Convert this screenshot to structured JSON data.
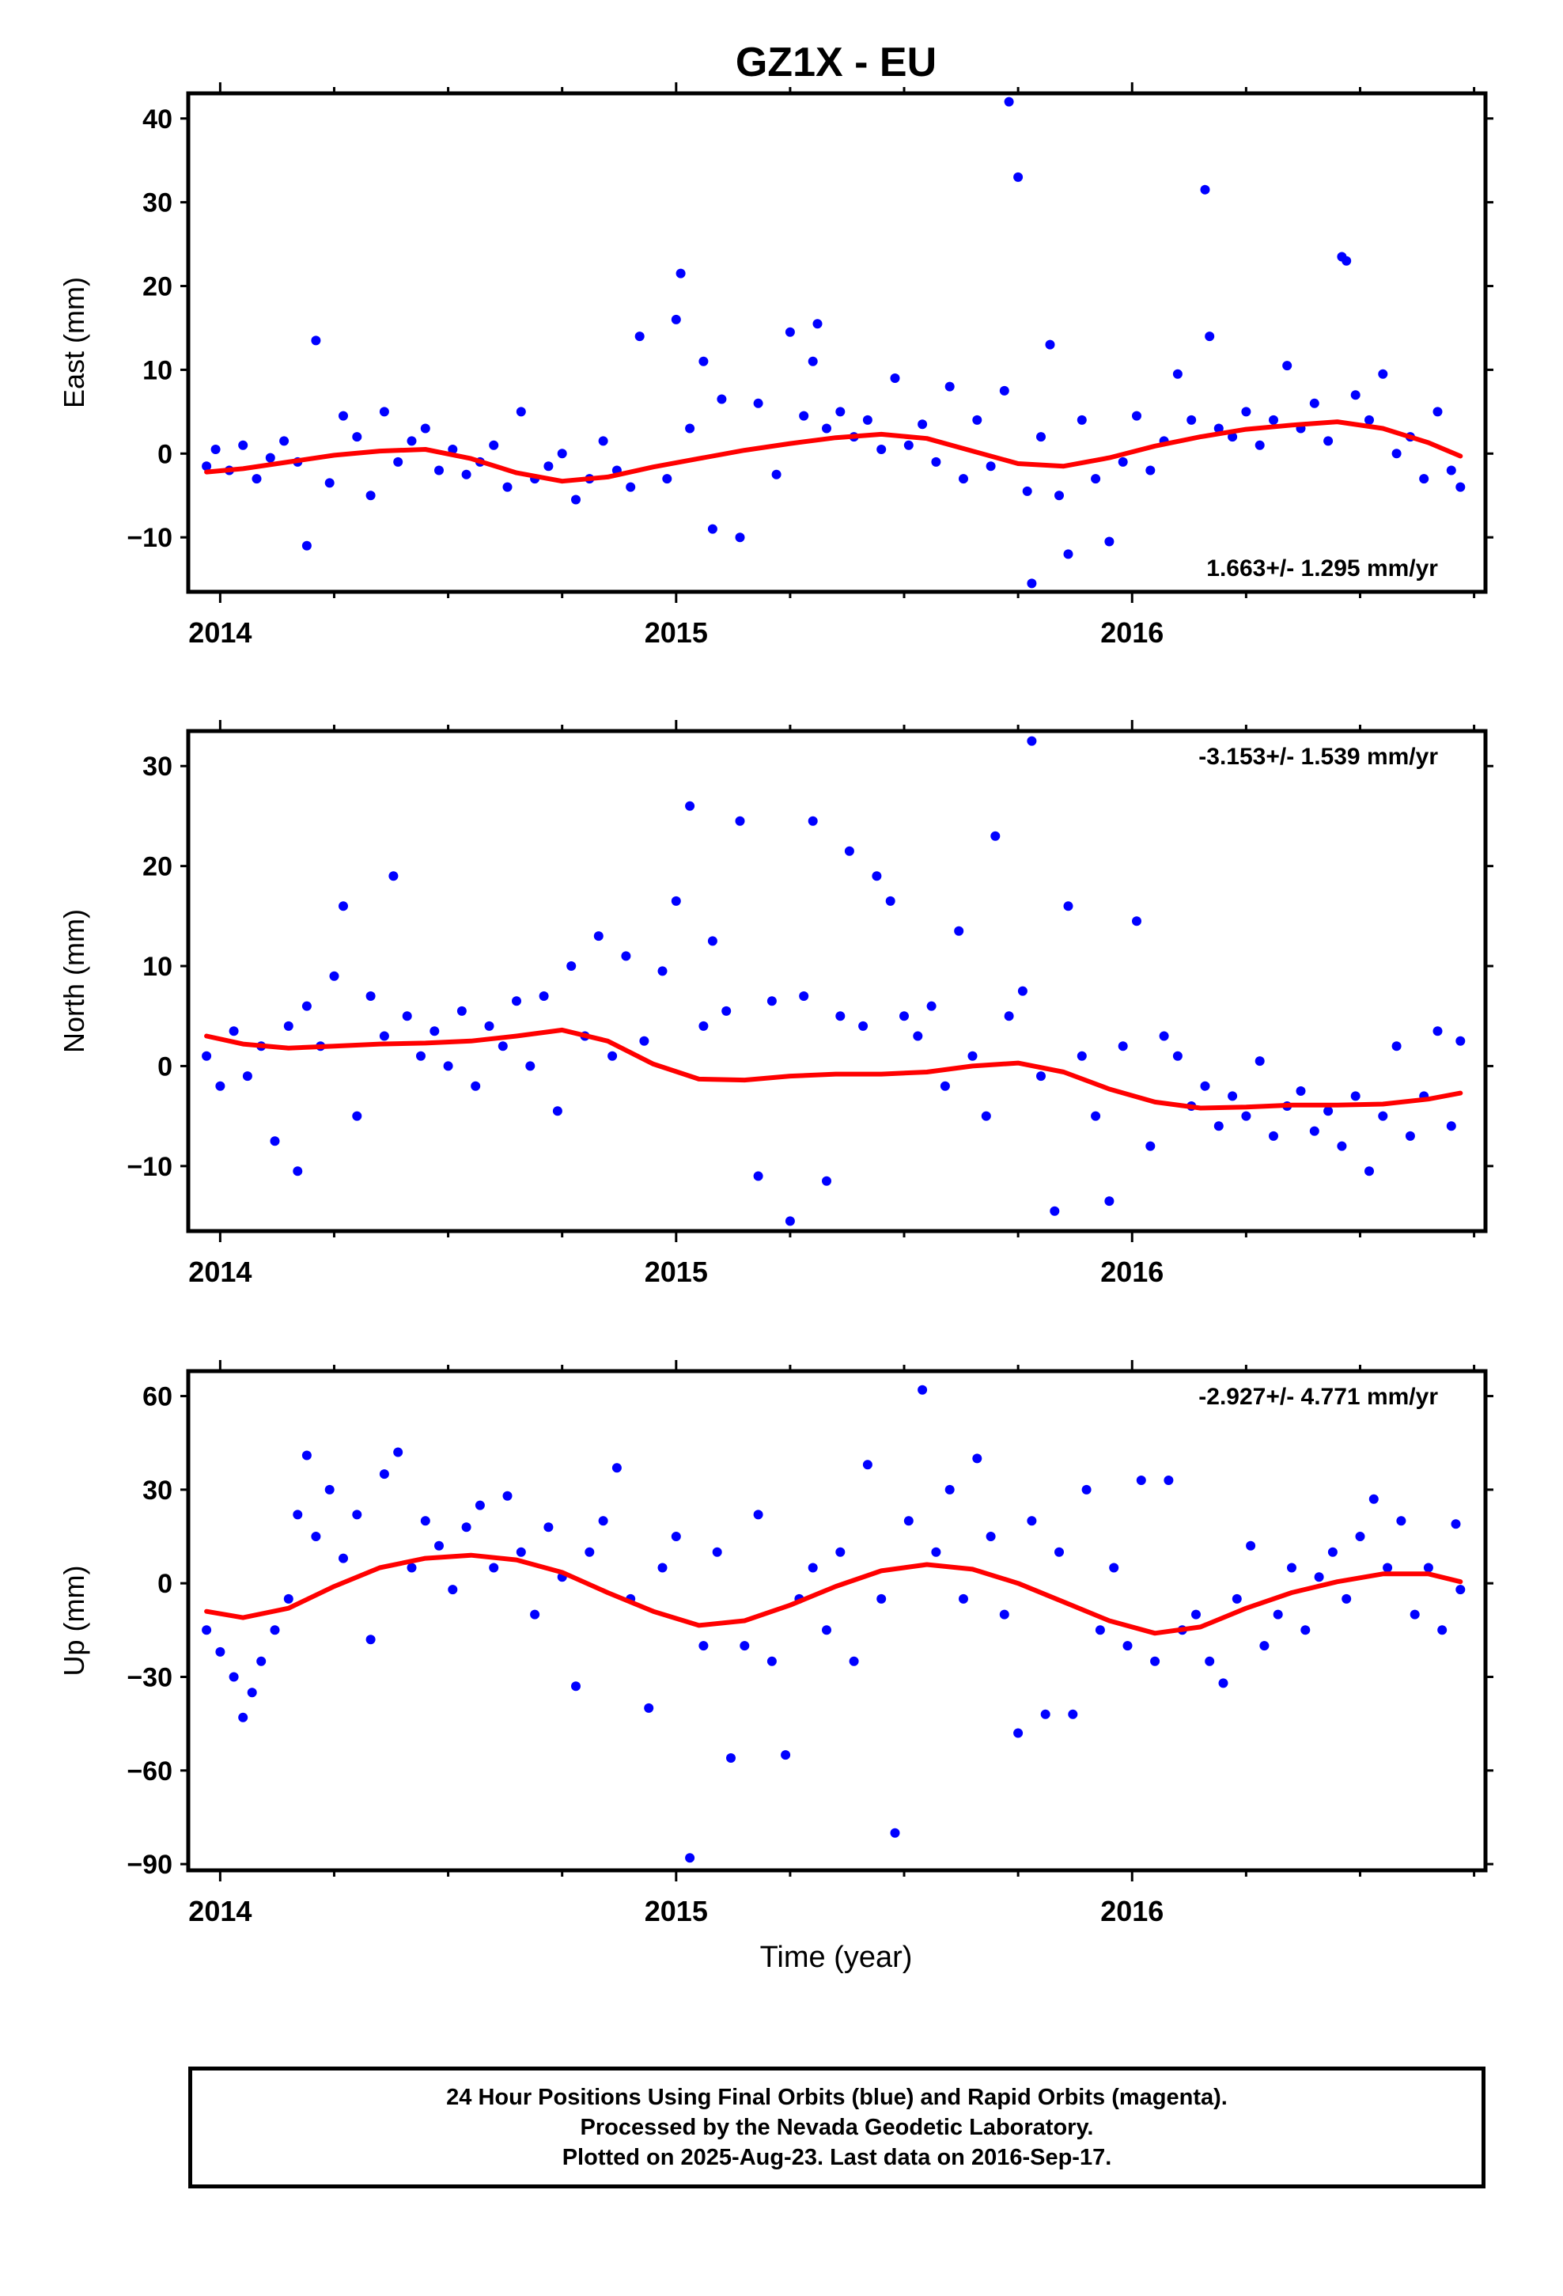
{
  "title": "GZ1X - EU",
  "xlabel": "Time (year)",
  "colors": {
    "final_orbits": "#0000ff",
    "fit_curve": "#ff0000",
    "frame": "#000000"
  },
  "footer": {
    "line1": "24 Hour Positions Using Final Orbits (blue) and Rapid Orbits (magenta).",
    "line2": "Processed by the Nevada Geodetic Laboratory.",
    "line3": "Plotted on 2025-Aug-23. Last data on 2016-Sep-17."
  },
  "chart_data": [
    {
      "type": "scatter",
      "ylabel": "East (mm)",
      "rate_label": "1.663+/- 1.295 mm/yr",
      "rate_position": "bottom-right",
      "xlim": [
        2013.93,
        2016.775
      ],
      "ylim": [
        -16.5,
        43
      ],
      "xticks": [
        2014,
        2015,
        2016
      ],
      "yticks": [
        -10,
        0,
        10,
        20,
        30,
        40
      ],
      "grid": false,
      "series": [
        {
          "kind": "points",
          "x": [
            2013.97,
            2013.99,
            2014.02,
            2014.05,
            2014.08,
            2014.11,
            2014.14,
            2014.17,
            2014.19,
            2014.21,
            2014.24,
            2014.27,
            2014.3,
            2014.33,
            2014.36,
            2014.39,
            2014.42,
            2014.45,
            2014.48,
            2014.51,
            2014.54,
            2014.57,
            2014.6,
            2014.63,
            2014.66,
            2014.69,
            2014.72,
            2014.75,
            2014.78,
            2014.81,
            2014.84,
            2014.87,
            2014.9,
            2014.92,
            2014.98,
            2015.0,
            2015.01,
            2015.03,
            2015.06,
            2015.08,
            2015.1,
            2015.14,
            2015.18,
            2015.22,
            2015.25,
            2015.28,
            2015.3,
            2015.31,
            2015.33,
            2015.36,
            2015.39,
            2015.42,
            2015.45,
            2015.48,
            2015.51,
            2015.54,
            2015.57,
            2015.6,
            2015.63,
            2015.66,
            2015.69,
            2015.72,
            2015.73,
            2015.75,
            2015.77,
            2015.78,
            2015.8,
            2015.82,
            2015.84,
            2015.86,
            2015.89,
            2015.92,
            2015.95,
            2015.98,
            2016.01,
            2016.04,
            2016.07,
            2016.1,
            2016.13,
            2016.16,
            2016.17,
            2016.19,
            2016.22,
            2016.25,
            2016.28,
            2016.31,
            2016.34,
            2016.37,
            2016.4,
            2016.43,
            2016.46,
            2016.47,
            2016.49,
            2016.52,
            2016.55,
            2016.58,
            2016.61,
            2016.64,
            2016.67,
            2016.7,
            2016.72
          ],
          "y": [
            -1.5,
            0.5,
            -2.0,
            1.0,
            -3.0,
            -0.5,
            1.5,
            -1.0,
            -11.0,
            13.5,
            -3.5,
            4.5,
            2.0,
            -5.0,
            5.0,
            -1.0,
            1.5,
            3.0,
            -2.0,
            0.5,
            -2.5,
            -1.0,
            1.0,
            -4.0,
            5.0,
            -3.0,
            -1.5,
            0.0,
            -5.5,
            -3.0,
            1.5,
            -2.0,
            -4.0,
            14.0,
            -3.0,
            16.0,
            21.5,
            3.0,
            11.0,
            -9.0,
            6.5,
            -10.0,
            6.0,
            -2.5,
            14.5,
            4.5,
            11.0,
            15.5,
            3.0,
            5.0,
            2.0,
            4.0,
            0.5,
            9.0,
            1.0,
            3.5,
            -1.0,
            8.0,
            -3.0,
            4.0,
            -1.5,
            7.5,
            42.0,
            33.0,
            -4.5,
            -15.5,
            2.0,
            13.0,
            -5.0,
            -12.0,
            4.0,
            -3.0,
            -10.5,
            -1.0,
            4.5,
            -2.0,
            1.5,
            9.5,
            4.0,
            31.5,
            14.0,
            3.0,
            2.0,
            5.0,
            1.0,
            4.0,
            10.5,
            3.0,
            6.0,
            1.5,
            23.5,
            23.0,
            7.0,
            4.0,
            9.5,
            0.0,
            2.0,
            -3.0,
            5.0,
            -2.0,
            -4.0
          ]
        },
        {
          "kind": "fit",
          "x": [
            2013.97,
            2014.05,
            2014.15,
            2014.25,
            2014.35,
            2014.45,
            2014.55,
            2014.65,
            2014.75,
            2014.85,
            2014.95,
            2015.05,
            2015.15,
            2015.25,
            2015.35,
            2015.45,
            2015.55,
            2015.65,
            2015.75,
            2015.85,
            2015.95,
            2016.05,
            2016.15,
            2016.25,
            2016.35,
            2016.45,
            2016.55,
            2016.65,
            2016.72
          ],
          "y": [
            -2.2,
            -1.8,
            -1.0,
            -0.2,
            0.3,
            0.5,
            -0.6,
            -2.3,
            -3.3,
            -2.8,
            -1.6,
            -0.6,
            0.4,
            1.2,
            1.9,
            2.3,
            1.8,
            0.3,
            -1.2,
            -1.5,
            -0.5,
            0.9,
            2.0,
            2.9,
            3.4,
            3.8,
            3.0,
            1.3,
            -0.3
          ]
        }
      ]
    },
    {
      "type": "scatter",
      "ylabel": "North (mm)",
      "rate_label": "-3.153+/- 1.539 mm/yr",
      "rate_position": "top-right",
      "xlim": [
        2013.93,
        2016.775
      ],
      "ylim": [
        -16.5,
        33.5
      ],
      "xticks": [
        2014,
        2015,
        2016
      ],
      "yticks": [
        -10,
        0,
        10,
        20,
        30
      ],
      "grid": false,
      "series": [
        {
          "kind": "points",
          "x": [
            2013.97,
            2014.0,
            2014.03,
            2014.06,
            2014.09,
            2014.12,
            2014.15,
            2014.17,
            2014.19,
            2014.22,
            2014.25,
            2014.27,
            2014.3,
            2014.33,
            2014.36,
            2014.38,
            2014.41,
            2014.44,
            2014.47,
            2014.5,
            2014.53,
            2014.56,
            2014.59,
            2014.62,
            2014.65,
            2014.68,
            2014.71,
            2014.74,
            2014.77,
            2014.8,
            2014.83,
            2014.86,
            2014.89,
            2014.93,
            2014.97,
            2015.0,
            2015.03,
            2015.06,
            2015.08,
            2015.11,
            2015.14,
            2015.18,
            2015.21,
            2015.25,
            2015.28,
            2015.3,
            2015.33,
            2015.36,
            2015.38,
            2015.41,
            2015.44,
            2015.47,
            2015.5,
            2015.53,
            2015.56,
            2015.59,
            2015.62,
            2015.65,
            2015.68,
            2015.7,
            2015.73,
            2015.76,
            2015.78,
            2015.8,
            2015.83,
            2015.86,
            2015.89,
            2015.92,
            2015.95,
            2015.98,
            2016.01,
            2016.04,
            2016.07,
            2016.1,
            2016.13,
            2016.16,
            2016.19,
            2016.22,
            2016.25,
            2016.28,
            2016.31,
            2016.34,
            2016.37,
            2016.4,
            2016.43,
            2016.46,
            2016.49,
            2016.52,
            2016.55,
            2016.58,
            2016.61,
            2016.64,
            2016.67,
            2016.7,
            2016.72
          ],
          "y": [
            1.0,
            -2.0,
            3.5,
            -1.0,
            2.0,
            -7.5,
            4.0,
            -10.5,
            6.0,
            2.0,
            9.0,
            16.0,
            -5.0,
            7.0,
            3.0,
            19.0,
            5.0,
            1.0,
            3.5,
            0.0,
            5.5,
            -2.0,
            4.0,
            2.0,
            6.5,
            0.0,
            7.0,
            -4.5,
            10.0,
            3.0,
            13.0,
            1.0,
            11.0,
            2.5,
            9.5,
            16.5,
            26.0,
            4.0,
            12.5,
            5.5,
            24.5,
            -11.0,
            6.5,
            -15.5,
            7.0,
            24.5,
            -11.5,
            5.0,
            21.5,
            4.0,
            19.0,
            16.5,
            5.0,
            3.0,
            6.0,
            -2.0,
            13.5,
            1.0,
            -5.0,
            23.0,
            5.0,
            7.5,
            32.5,
            -1.0,
            -14.5,
            16.0,
            1.0,
            -5.0,
            -13.5,
            2.0,
            14.5,
            -8.0,
            3.0,
            1.0,
            -4.0,
            -2.0,
            -6.0,
            -3.0,
            -5.0,
            0.5,
            -7.0,
            -4.0,
            -2.5,
            -6.5,
            -4.5,
            -8.0,
            -3.0,
            -10.5,
            -5.0,
            2.0,
            -7.0,
            -3.0,
            3.5,
            -6.0,
            2.5
          ]
        },
        {
          "kind": "fit",
          "x": [
            2013.97,
            2014.05,
            2014.15,
            2014.25,
            2014.35,
            2014.45,
            2014.55,
            2014.65,
            2014.75,
            2014.85,
            2014.95,
            2015.05,
            2015.15,
            2015.25,
            2015.35,
            2015.45,
            2015.55,
            2015.65,
            2015.75,
            2015.85,
            2015.95,
            2016.05,
            2016.15,
            2016.25,
            2016.35,
            2016.45,
            2016.55,
            2016.65,
            2016.72
          ],
          "y": [
            3.0,
            2.2,
            1.8,
            2.0,
            2.2,
            2.3,
            2.5,
            3.0,
            3.6,
            2.5,
            0.2,
            -1.3,
            -1.4,
            -1.0,
            -0.8,
            -0.8,
            -0.6,
            0.0,
            0.3,
            -0.6,
            -2.3,
            -3.6,
            -4.2,
            -4.1,
            -3.9,
            -3.9,
            -3.8,
            -3.3,
            -2.7
          ]
        }
      ]
    },
    {
      "type": "scatter",
      "ylabel": "Up (mm)",
      "rate_label": "-2.927+/- 4.771 mm/yr",
      "rate_position": "top-right",
      "xlim": [
        2013.93,
        2016.775
      ],
      "ylim": [
        -92,
        68
      ],
      "xticks": [
        2014,
        2015,
        2016
      ],
      "yticks": [
        -90,
        -60,
        -30,
        0,
        30,
        60
      ],
      "grid": false,
      "series": [
        {
          "kind": "points",
          "x": [
            2013.97,
            2014.0,
            2014.03,
            2014.05,
            2014.07,
            2014.09,
            2014.12,
            2014.15,
            2014.17,
            2014.19,
            2014.21,
            2014.24,
            2014.27,
            2014.3,
            2014.33,
            2014.36,
            2014.39,
            2014.42,
            2014.45,
            2014.48,
            2014.51,
            2014.54,
            2014.57,
            2014.6,
            2014.63,
            2014.66,
            2014.69,
            2014.72,
            2014.75,
            2014.78,
            2014.81,
            2014.84,
            2014.87,
            2014.9,
            2014.94,
            2014.97,
            2015.0,
            2015.03,
            2015.06,
            2015.09,
            2015.12,
            2015.15,
            2015.18,
            2015.21,
            2015.24,
            2015.27,
            2015.3,
            2015.33,
            2015.36,
            2015.39,
            2015.42,
            2015.45,
            2015.48,
            2015.51,
            2015.54,
            2015.57,
            2015.6,
            2015.63,
            2015.66,
            2015.69,
            2015.72,
            2015.75,
            2015.78,
            2015.81,
            2015.84,
            2015.87,
            2015.9,
            2015.93,
            2015.96,
            2015.99,
            2016.02,
            2016.05,
            2016.08,
            2016.11,
            2016.14,
            2016.17,
            2016.2,
            2016.23,
            2016.26,
            2016.29,
            2016.32,
            2016.35,
            2016.38,
            2016.41,
            2016.44,
            2016.47,
            2016.5,
            2016.53,
            2016.56,
            2016.59,
            2016.62,
            2016.65,
            2016.68,
            2016.71,
            2016.72
          ],
          "y": [
            -15.0,
            -22.0,
            -30.0,
            -43.0,
            -35.0,
            -25.0,
            -15.0,
            -5.0,
            22.0,
            41.0,
            15.0,
            30.0,
            8.0,
            22.0,
            -18.0,
            35.0,
            42.0,
            5.0,
            20.0,
            12.0,
            -2.0,
            18.0,
            25.0,
            5.0,
            28.0,
            10.0,
            -10.0,
            18.0,
            2.0,
            -33.0,
            10.0,
            20.0,
            37.0,
            -5.0,
            -40.0,
            5.0,
            15.0,
            -88.0,
            -20.0,
            10.0,
            -56.0,
            -20.0,
            22.0,
            -25.0,
            -55.0,
            -5.0,
            5.0,
            -15.0,
            10.0,
            -25.0,
            38.0,
            -5.0,
            -80.0,
            20.0,
            62.0,
            10.0,
            30.0,
            -5.0,
            40.0,
            15.0,
            -10.0,
            -48.0,
            20.0,
            -42.0,
            10.0,
            -42.0,
            30.0,
            -15.0,
            5.0,
            -20.0,
            33.0,
            -25.0,
            33.0,
            -15.0,
            -10.0,
            -25.0,
            -32.0,
            -5.0,
            12.0,
            -20.0,
            -10.0,
            5.0,
            -15.0,
            2.0,
            10.0,
            -5.0,
            15.0,
            27.0,
            5.0,
            20.0,
            -10.0,
            5.0,
            -15.0,
            19.0,
            -2.0
          ]
        },
        {
          "kind": "fit",
          "x": [
            2013.97,
            2014.05,
            2014.15,
            2014.25,
            2014.35,
            2014.45,
            2014.55,
            2014.65,
            2014.75,
            2014.85,
            2014.95,
            2015.05,
            2015.15,
            2015.25,
            2015.35,
            2015.45,
            2015.55,
            2015.65,
            2015.75,
            2015.85,
            2015.95,
            2016.05,
            2016.15,
            2016.25,
            2016.35,
            2016.45,
            2016.55,
            2016.65,
            2016.72
          ],
          "y": [
            -9.0,
            -11.0,
            -8.0,
            -1.0,
            5.0,
            8.0,
            9.0,
            7.5,
            3.5,
            -3.0,
            -9.0,
            -13.5,
            -12.0,
            -7.0,
            -1.0,
            4.0,
            6.0,
            4.5,
            0.0,
            -6.0,
            -12.0,
            -16.0,
            -14.0,
            -8.0,
            -3.0,
            0.5,
            3.0,
            3.0,
            0.5
          ]
        }
      ]
    }
  ]
}
